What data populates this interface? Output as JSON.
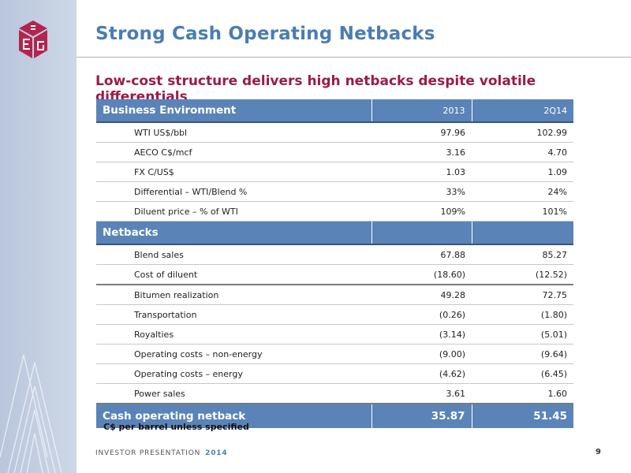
{
  "slide": {
    "title": "Strong Cash Operating Netbacks",
    "subtitle": "Low-cost structure delivers high netbacks despite volatile differentials",
    "note": "C$ per barrel unless specified",
    "footer": {
      "text": "INVESTOR PRESENTATION",
      "year": "2014"
    },
    "page_number": "9"
  },
  "colors": {
    "title": "#4a7db3",
    "subtitle": "#9b1b48",
    "table_header": "#5a84b8",
    "logo": "#b3244f"
  },
  "table": {
    "business_environment": {
      "label": "Business Environment",
      "col1": "2013",
      "col2": "2Q14",
      "rows": [
        {
          "label": "WTI US$/bbl",
          "v2013": "97.96",
          "v2q14": "102.99"
        },
        {
          "label": "AECO C$/mcf",
          "v2013": "3.16",
          "v2q14": "4.70"
        },
        {
          "label": "FX C/US$",
          "v2013": "1.03",
          "v2q14": "1.09"
        },
        {
          "label": "Differential – WTI/Blend %",
          "v2013": "33%",
          "v2q14": "24%"
        },
        {
          "label": "Diluent price – % of WTI",
          "v2013": "109%",
          "v2q14": "101%"
        }
      ]
    },
    "netbacks": {
      "label": "Netbacks",
      "rows": [
        {
          "label": "Blend sales",
          "v2013": "67.88",
          "v2q14": "85.27"
        },
        {
          "label": "Cost of diluent",
          "v2013": "(18.60)",
          "v2q14": "(12.52)"
        },
        {
          "label": "Bitumen realization",
          "v2013": "49.28",
          "v2q14": "72.75"
        },
        {
          "label": "Transportation",
          "v2013": "(0.26)",
          "v2q14": "(1.80)"
        },
        {
          "label": "Royalties",
          "v2013": "(3.14)",
          "v2q14": "(5.01)"
        },
        {
          "label": "Operating costs – non-energy",
          "v2013": "(9.00)",
          "v2q14": "(9.64)"
        },
        {
          "label": "Operating costs – energy",
          "v2013": "(4.62)",
          "v2q14": "(6.45)"
        },
        {
          "label": "Power sales",
          "v2013": "3.61",
          "v2q14": "1.60"
        }
      ]
    },
    "total": {
      "label": "Cash operating netback",
      "v2013": "35.87",
      "v2q14": "51.45"
    }
  }
}
